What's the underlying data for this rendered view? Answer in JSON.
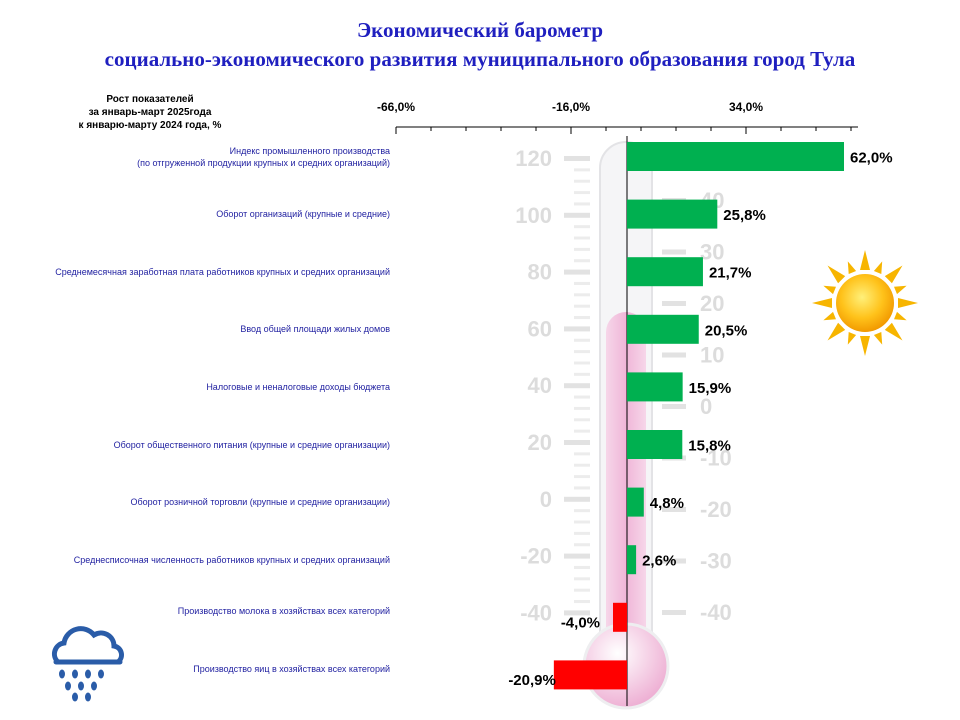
{
  "header": {
    "title_line1": "Экономический барометр",
    "title_line2": "социально-экономического развития муниципального образования город Тула"
  },
  "axis_title": {
    "line1": "Рост показателей",
    "line2": "за январь-март 2025года",
    "line3": "к январю-марту 2024 года, %"
  },
  "chart_data": {
    "type": "bar",
    "orientation": "horizontal",
    "categories": [
      [
        "Индекс промышленного производства",
        "(по отгруженной продукции крупных и средних организаций)"
      ],
      [
        "Оборот организаций (крупные и средние)"
      ],
      [
        "Среднемесячная заработная плата работников крупных и средних организаций"
      ],
      [
        "Ввод общей площади жилых домов"
      ],
      [
        "Налоговые и неналоговые доходы бюджета"
      ],
      [
        "Оборот общественного питания (крупные и средние организации)"
      ],
      [
        "Оборот розничной торговли (крупные и средние организации)"
      ],
      [
        "Среднесписочная численность работников крупных и средних организаций"
      ],
      [
        "Производство молока в хозяйствах всех категорий"
      ],
      [
        "Производство яиц в хозяйствах всех категорий"
      ]
    ],
    "values": [
      62.0,
      25.8,
      21.7,
      20.5,
      15.9,
      15.8,
      4.8,
      2.6,
      -4.0,
      -20.9
    ],
    "value_labels": [
      "62,0%",
      "25,8%",
      "21,7%",
      "20,5%",
      "15,9%",
      "15,8%",
      "4,8%",
      "2,6%",
      "-4,0%",
      "-20,9%"
    ],
    "xlim": [
      -66,
      66
    ],
    "tick_labels": [
      "-66,0%",
      "-16,0%",
      "34,0%"
    ],
    "tick_values": [
      -66,
      -16,
      34
    ],
    "positive_color": "#00b050",
    "negative_color": "#ff0000",
    "grid": false,
    "legend": "none"
  },
  "background_scales": {
    "celsius": [
      "120",
      "100",
      "80",
      "60",
      "40",
      "20",
      "0",
      "-20",
      "-40"
    ],
    "fahrenheit": [
      "40",
      "30",
      "20",
      "10",
      "0",
      "-10",
      "-20",
      "-30",
      "-40"
    ]
  },
  "icons": [
    "sun-icon",
    "rain-cloud-icon"
  ]
}
